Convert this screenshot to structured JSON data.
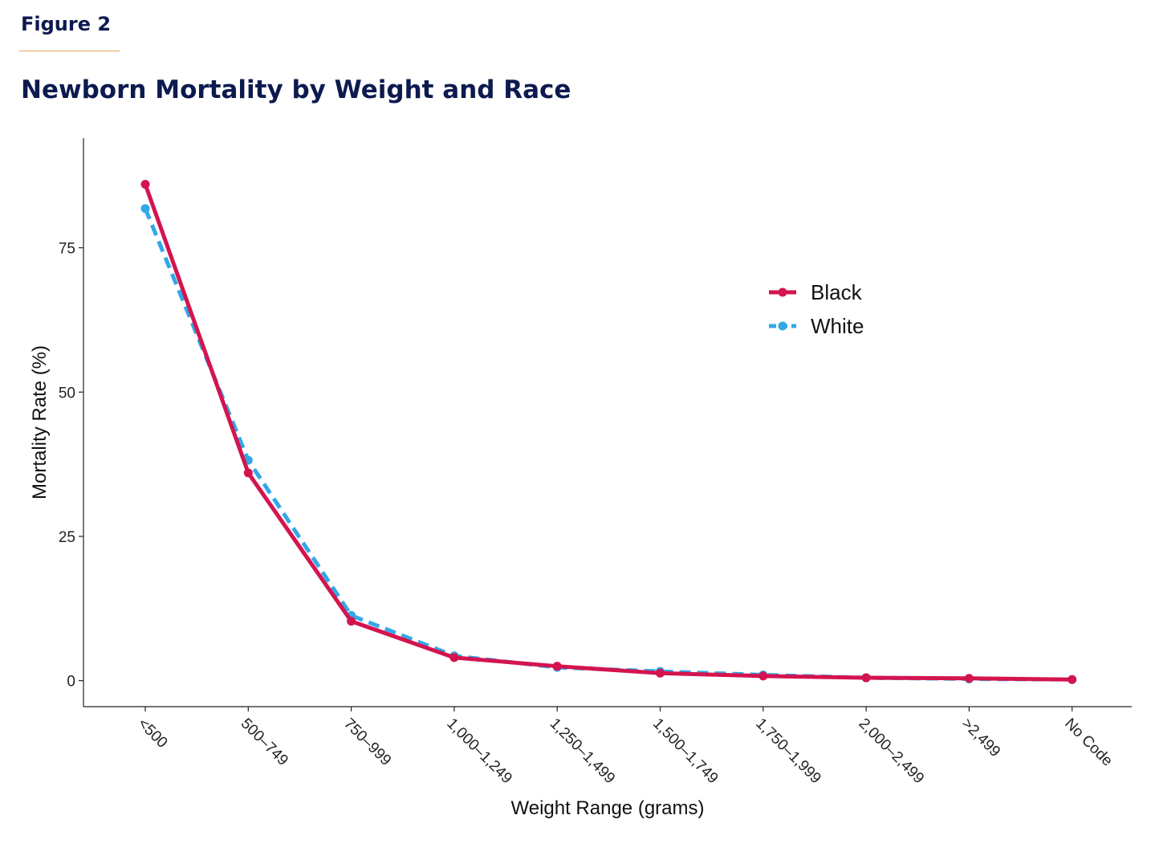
{
  "figure_label": "Figure 2",
  "title": "Newborn Mortality by Weight and Race",
  "colors": {
    "black": "#d4144f",
    "white": "#33a8e8",
    "navy": "#0d1a4f",
    "accent_rule": "#e8a05a"
  },
  "chart_data": {
    "type": "line",
    "title": "Newborn Mortality by Weight and Race",
    "xlabel": "Weight Range (grams)",
    "ylabel": "Mortality Rate (%)",
    "categories": [
      "<500",
      "500–749",
      "750–999",
      "1,000–1,249",
      "1,250–1,499",
      "1,500–1,749",
      "1,750–1,999",
      "2,000–2,499",
      ">2,499",
      "No Code"
    ],
    "y_ticks": [
      0,
      25,
      50,
      75
    ],
    "ylim": [
      -4.5,
      94
    ],
    "grid": false,
    "legend_position": "top-right",
    "series": [
      {
        "name": "Black",
        "color": "#d4144f",
        "style": "solid",
        "values": [
          86.0,
          36.0,
          10.3,
          4.0,
          2.5,
          1.3,
          0.8,
          0.5,
          0.4,
          0.2
        ]
      },
      {
        "name": "White",
        "color": "#33a8e8",
        "style": "dashed",
        "values": [
          81.8,
          38.2,
          11.3,
          4.3,
          2.3,
          1.6,
          1.0,
          0.5,
          0.3,
          0.2
        ]
      }
    ]
  }
}
